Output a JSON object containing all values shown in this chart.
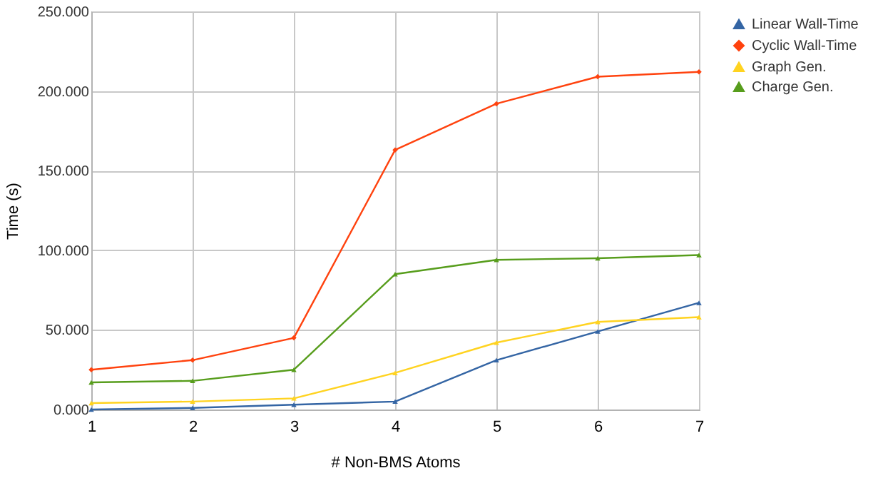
{
  "chart_data": {
    "type": "line",
    "xlabel": "# Non-BMS Atoms",
    "ylabel": "Time (s)",
    "x": [
      1,
      2,
      3,
      4,
      5,
      6,
      7
    ],
    "xlim": [
      1,
      7
    ],
    "xticks": [
      1,
      2,
      3,
      4,
      5,
      6,
      7
    ],
    "ylim": [
      0,
      250
    ],
    "yticks": [
      {
        "value": 0,
        "label": "0.000"
      },
      {
        "value": 50,
        "label": "50.000"
      },
      {
        "value": 100,
        "label": "100.000"
      },
      {
        "value": 150,
        "label": "150.000"
      },
      {
        "value": 200,
        "label": "200.000"
      },
      {
        "value": 250,
        "label": "250.000"
      }
    ],
    "grid": true,
    "legend": "right",
    "marker": "triangle",
    "series": [
      {
        "name": "Linear Wall-Time",
        "color": "#3465a4",
        "values": [
          0,
          1,
          3,
          5,
          31,
          49,
          67
        ]
      },
      {
        "name": "Cyclic Wall-Time",
        "color": "#ff420e",
        "marker": "diamond",
        "values": [
          25,
          31,
          45,
          163,
          192,
          209,
          212
        ]
      },
      {
        "name": "Graph Gen.",
        "color": "#ffd320",
        "values": [
          4,
          5,
          7,
          23,
          42,
          55,
          58
        ]
      },
      {
        "name": "Charge Gen.",
        "color": "#579d1c",
        "values": [
          17,
          18,
          25,
          85,
          94,
          95,
          97
        ]
      }
    ]
  }
}
